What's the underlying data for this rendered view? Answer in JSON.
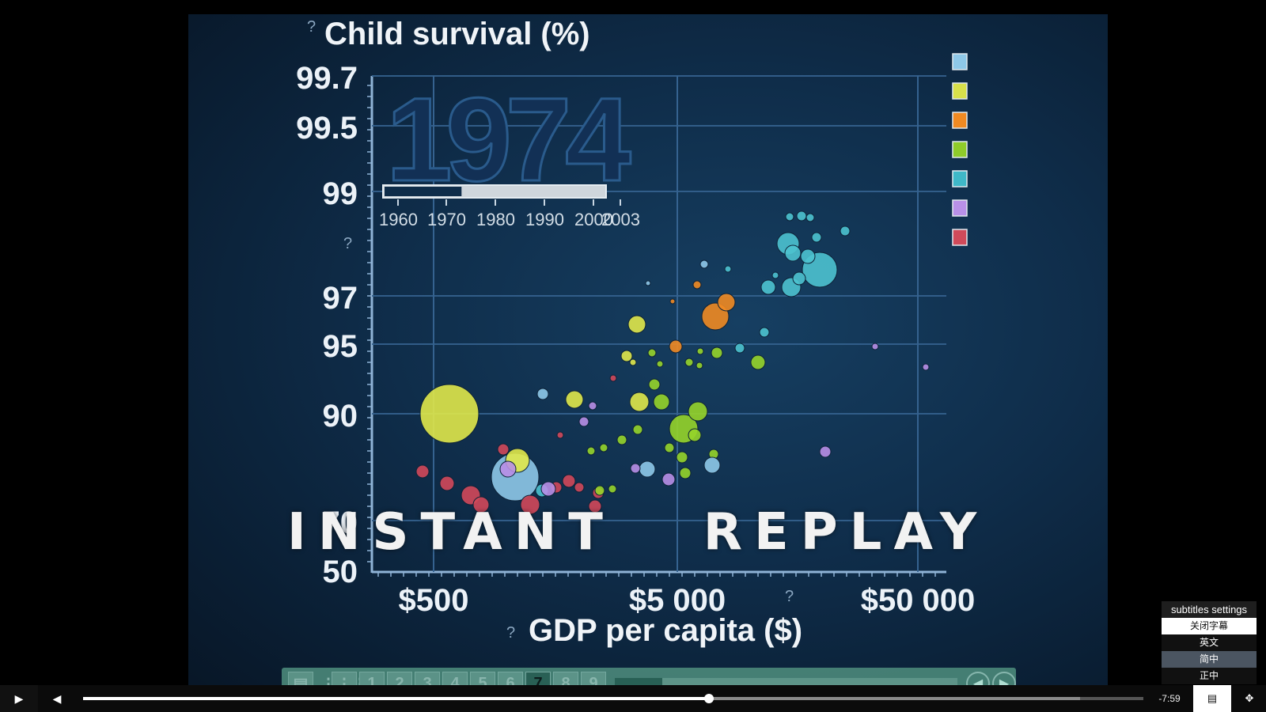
{
  "video": {
    "title": "Child survival (%)",
    "x_axis_label": "GDP per capita ($)",
    "year": "1974",
    "overlay_text": "INSTANT   REPLAY",
    "help_mark": "?",
    "y_ticks": [
      "99.7",
      "99.5",
      "99",
      "97",
      "95",
      "90",
      "70",
      "50"
    ],
    "x_ticks": [
      "$500",
      "$5 000",
      "$50 000"
    ],
    "timeline_labels": [
      "1960",
      "1970",
      "1980",
      "1990",
      "2000",
      "2003"
    ],
    "timeline_progress": 0.35,
    "legend_colors": [
      "#8ec8e8",
      "#d8e04a",
      "#f08a22",
      "#8fcc2a",
      "#3fb8c8",
      "#b890e8",
      "#d04a5a"
    ],
    "toolbar_buttons": [
      "1",
      "2",
      "3",
      "4",
      "5",
      "6",
      "7",
      "8",
      "9"
    ],
    "toolbar_active": "7"
  },
  "chart_data": {
    "type": "scatter",
    "title": "Child survival (%)",
    "xlabel": "GDP per capita ($)",
    "ylabel": "Child survival (%)",
    "x_scale": "log",
    "y_ticks": [
      50,
      70,
      90,
      95,
      97,
      99,
      99.5,
      99.7
    ],
    "x_ticks": [
      500,
      5000,
      50000
    ],
    "year": 1974
  },
  "player": {
    "play_icon": "play-icon",
    "volume_icon": "volume-icon",
    "time_remaining": "-7:59",
    "progress": 0.59,
    "buffered": 0.94,
    "subtitles_icon": "subtitles-icon",
    "fullscreen_icon": "exit-fullscreen-icon"
  },
  "subtitles_menu": {
    "header": "subtitles settings",
    "items": [
      "关闭字幕",
      "英文",
      "简中",
      "正中"
    ]
  }
}
